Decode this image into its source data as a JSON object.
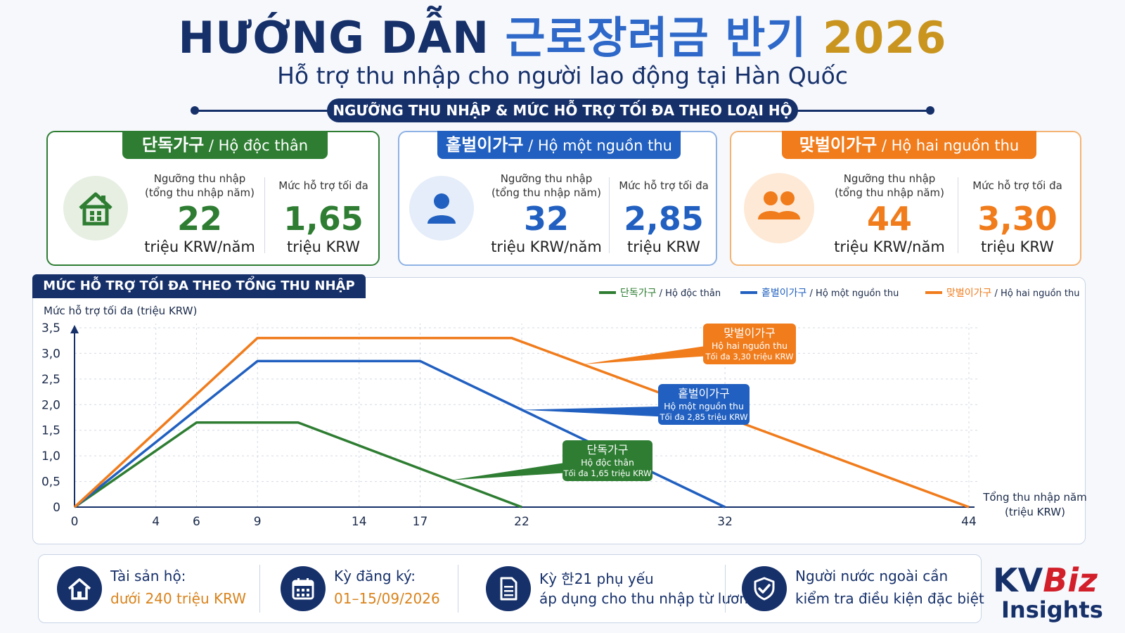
{
  "title": {
    "part_vn": "HƯỚNG DẪN",
    "part_kr": "근로장려금 반기",
    "part_year": "2026"
  },
  "subtitle": "Hỗ trợ thu nhập cho người lao động tại Hàn Quốc",
  "section_label": "NGƯỠNG THU NHẬP & MỨC HỖ TRỢ TỐI ĐA THEO LOẠI HỘ",
  "cards": [
    {
      "kr": "단독가구",
      "vn": " / Hộ độc thân",
      "color": "#2e7d32",
      "icon": "house-icon",
      "threshold_label1": "Ngưỡng thu nhập",
      "threshold_label2": "(tổng thu nhập năm)",
      "threshold": "22",
      "threshold_unit": "triệu KRW/năm",
      "max_label": "Mức hỗ trợ tối đa",
      "max": "1,65",
      "max_unit": "triệu KRW"
    },
    {
      "kr": "홑벌이가구",
      "vn": " / Hộ một nguồn thu",
      "color": "#2160c0",
      "icon": "person-icon",
      "threshold_label1": "Ngưỡng thu nhập",
      "threshold_label2": "(tổng thu nhập năm)",
      "threshold": "32",
      "threshold_unit": "triệu KRW/năm",
      "max_label": "Mức hỗ trợ tối đa",
      "max": "2,85",
      "max_unit": "triệu KRW"
    },
    {
      "kr": "맞벌이가구",
      "vn": " / Hộ hai nguồn thu",
      "color": "#f07c1c",
      "icon": "two-people-icon",
      "threshold_label1": "Ngưỡng thu nhập",
      "threshold_label2": "(tổng thu nhập năm)",
      "threshold": "44",
      "threshold_unit": "triệu KRW/năm",
      "max_label": "Mức hỗ trợ tối đa",
      "max": "3,30",
      "max_unit": "triệu KRW"
    }
  ],
  "chart_data": {
    "type": "line",
    "title": "MỨC HỖ TRỢ TỐI ĐA THEO TỔNG THU NHẬP NĂM",
    "ylabel": "Mức hỗ trợ tối đa (triệu KRW)",
    "xlabel_line1": "Tổng thu nhập năm",
    "xlabel_line2": "(triệu KRW)",
    "ylim": [
      0,
      3.5
    ],
    "xlim": [
      0,
      44
    ],
    "x_ticks": [
      0,
      4,
      6,
      9,
      14,
      17,
      22,
      32,
      44
    ],
    "x_tick_labels": [
      "0",
      "4",
      "6",
      "9",
      "14",
      "17",
      "22",
      "32",
      "44"
    ],
    "y_ticks": [
      0,
      0.5,
      1.0,
      1.5,
      2.0,
      2.5,
      3.0,
      3.5
    ],
    "y_tick_labels": [
      "0",
      "0,5",
      "1,0",
      "1,5",
      "2,0",
      "2,5",
      "3,0",
      "3,5"
    ],
    "grid": true,
    "legend_position": "top-right",
    "series": [
      {
        "name": "단독가구 / Hộ độc thân",
        "legend_kr": "단독가구",
        "legend_vn": " / Hộ độc thân",
        "color": "#2e7d32",
        "x": [
          0,
          6,
          11,
          22
        ],
        "y": [
          0,
          1.65,
          1.65,
          0
        ],
        "callout": {
          "line1": "단독가구",
          "line2": "Hộ độc thân",
          "line3": "Tối đa 1,65 triệu KRW",
          "at_x": 18.5
        }
      },
      {
        "name": "홑벌이가구 / Hộ một nguồn thu",
        "legend_kr": "홑벌이가구",
        "legend_vn": " / Hộ một nguồn thu",
        "color": "#2160c0",
        "x": [
          0,
          9,
          17,
          32
        ],
        "y": [
          0,
          2.85,
          2.85,
          0
        ],
        "callout": {
          "line1": "홑벌이가구",
          "line2": "Hộ một nguồn thu",
          "line3": "Tối đa 2,85 triệu KRW",
          "at_x": 22
        }
      },
      {
        "name": "맞벌이가구 / Hộ hai nguồn thu",
        "legend_kr": "맞벌이가구",
        "legend_vn": " / Hộ hai nguồn thu",
        "color": "#f07c1c",
        "x": [
          0,
          9,
          21.5,
          44
        ],
        "y": [
          0,
          3.3,
          3.3,
          0
        ],
        "callout": {
          "line1": "맞벌이가구",
          "line2": "Hộ hai nguồn thu",
          "line3": "Tối đa 3,30 triệu KRW",
          "at_x": 25
        }
      }
    ]
  },
  "bottom": [
    {
      "icon": "house-icon",
      "line1": "Tài sản hộ:",
      "line2": "dưới 240 triệu KRW",
      "line2_color": "#d9831c"
    },
    {
      "icon": "calendar-icon",
      "line1": "Kỳ đăng ký:",
      "line2": "01–15/09/2026",
      "line2_color": "#d9831c"
    },
    {
      "icon": "document-icon",
      "line1": "Kỳ 한21 phụ yếu",
      "line2": "áp dụng cho thu nhập từ lương",
      "line2_color": "#16306a"
    },
    {
      "icon": "shield-check-icon",
      "line1": "Người nước ngoài cần",
      "line2": "kiểm tra điều kiện đặc biệt",
      "line2_color": "#16306a"
    }
  ],
  "logo": {
    "kv": "KV",
    "biz": "Biz",
    "insights": "Insights"
  }
}
